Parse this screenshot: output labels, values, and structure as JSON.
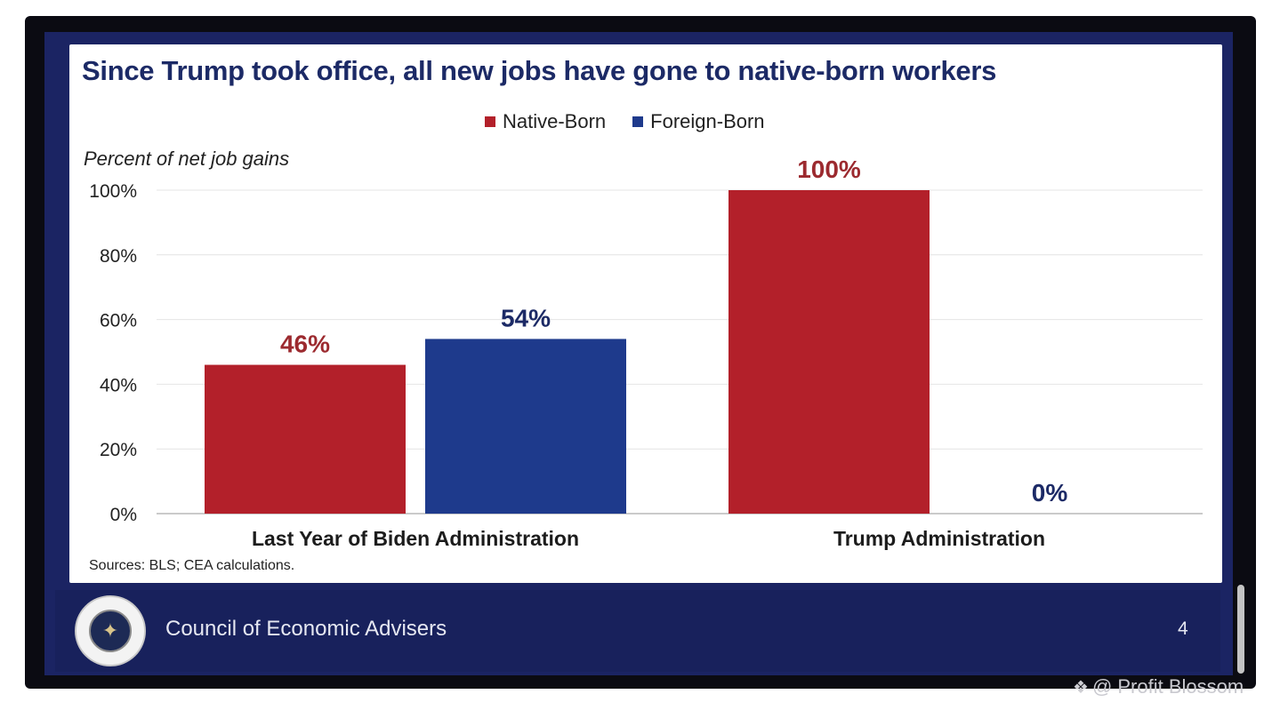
{
  "slide": {
    "organization": "Council of Economic Advisers",
    "page_number": "4",
    "sources": "Sources: BLS; CEA calculations."
  },
  "watermark": {
    "text": "@ Profit Blossom",
    "logo_icon": "binance-diamond-icon"
  },
  "colors": {
    "native_born": "#b3202a",
    "foreign_born": "#1e3a8c",
    "title": "#1c2a66",
    "slide_background": "#1b2463"
  },
  "chart_data": {
    "type": "bar",
    "title": "Since Trump took office, all new jobs have gone to native-born workers",
    "ylabel": "Percent of net job gains",
    "xlabel": "",
    "ylim": [
      0,
      100
    ],
    "y_ticks": [
      0,
      20,
      40,
      60,
      80,
      100
    ],
    "y_tick_labels": [
      "0%",
      "20%",
      "40%",
      "60%",
      "80%",
      "100%"
    ],
    "grid": true,
    "legend_position": "top-center",
    "categories": [
      "Last Year of Biden Administration",
      "Trump Administration"
    ],
    "series": [
      {
        "name": "Native-Born",
        "color": "#b3202a",
        "values": [
          46,
          100
        ],
        "labels": [
          "46%",
          "100%"
        ]
      },
      {
        "name": "Foreign-Born",
        "color": "#1e3a8c",
        "values": [
          54,
          0
        ],
        "labels": [
          "54%",
          "0%"
        ]
      }
    ]
  }
}
